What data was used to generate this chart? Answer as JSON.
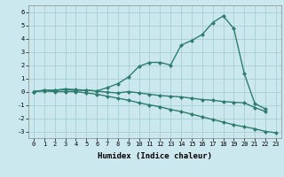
{
  "xlabel": "Humidex (Indice chaleur)",
  "ylabel": "",
  "x": [
    0,
    1,
    2,
    3,
    4,
    5,
    6,
    7,
    8,
    9,
    10,
    11,
    12,
    13,
    14,
    15,
    16,
    17,
    18,
    19,
    20,
    21,
    22,
    23
  ],
  "line1": [
    0.0,
    0.1,
    0.1,
    0.2,
    0.15,
    0.1,
    0.05,
    0.3,
    0.6,
    1.1,
    1.9,
    2.2,
    2.2,
    2.0,
    3.5,
    3.85,
    4.3,
    5.2,
    5.7,
    4.75,
    1.35,
    -0.9,
    -1.3,
    null
  ],
  "line2": [
    0.0,
    0.1,
    0.1,
    0.15,
    0.1,
    0.1,
    0.05,
    -0.05,
    -0.1,
    0.0,
    -0.1,
    -0.2,
    -0.3,
    -0.35,
    -0.4,
    -0.5,
    -0.6,
    -0.65,
    -0.75,
    -0.8,
    -0.85,
    -1.2,
    -1.5,
    null
  ],
  "line3": [
    0.0,
    0.05,
    0.0,
    0.0,
    0.0,
    -0.1,
    -0.2,
    -0.35,
    -0.5,
    -0.65,
    -0.85,
    -1.0,
    -1.15,
    -1.35,
    -1.5,
    -1.7,
    -1.9,
    -2.1,
    -2.3,
    -2.5,
    -2.65,
    -2.8,
    -3.0,
    -3.1
  ],
  "line_color": "#2e7d6e",
  "bg_color": "#cce8ef",
  "grid_color": "#aacdd6",
  "ylim": [
    -3.5,
    6.5
  ],
  "yticks": [
    -3,
    -2,
    -1,
    0,
    1,
    2,
    3,
    4,
    5,
    6
  ],
  "xticks": [
    0,
    1,
    2,
    3,
    4,
    5,
    6,
    7,
    8,
    9,
    10,
    11,
    12,
    13,
    14,
    15,
    16,
    17,
    18,
    19,
    20,
    21,
    22,
    23
  ],
  "marker": "D",
  "marker_size": 2.0,
  "linewidth": 1.0
}
